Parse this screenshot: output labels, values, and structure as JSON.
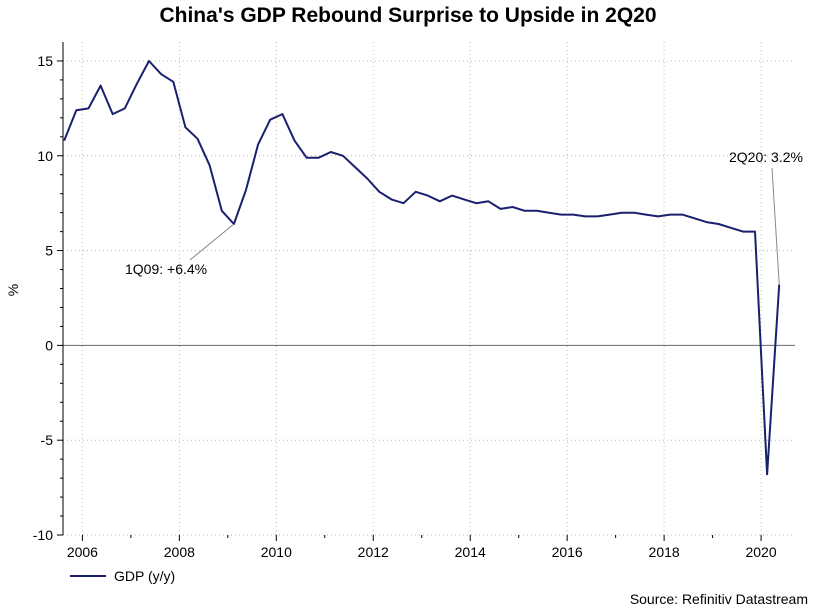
{
  "chart_data": {
    "type": "line",
    "title": "China's GDP Rebound Surprise to Upside in 2Q20",
    "xlabel": "",
    "ylabel": "%",
    "xlim": [
      2005.6,
      2020.7
    ],
    "ylim": [
      -10,
      16
    ],
    "x_ticks": [
      2006,
      2008,
      2010,
      2012,
      2014,
      2016,
      2018,
      2020
    ],
    "y_ticks": [
      -10,
      -5,
      0,
      5,
      10,
      15
    ],
    "grid": "dotted",
    "series": [
      {
        "name": "GDP (y/y)",
        "color": "#1a1f6e",
        "x": [
          2005.625,
          2005.875,
          2006.125,
          2006.375,
          2006.625,
          2006.875,
          2007.125,
          2007.375,
          2007.625,
          2007.875,
          2008.125,
          2008.375,
          2008.625,
          2008.875,
          2009.125,
          2009.375,
          2009.625,
          2009.875,
          2010.125,
          2010.375,
          2010.625,
          2010.875,
          2011.125,
          2011.375,
          2011.625,
          2011.875,
          2012.125,
          2012.375,
          2012.625,
          2012.875,
          2013.125,
          2013.375,
          2013.625,
          2013.875,
          2014.125,
          2014.375,
          2014.625,
          2014.875,
          2015.125,
          2015.375,
          2015.625,
          2015.875,
          2016.125,
          2016.375,
          2016.625,
          2016.875,
          2017.125,
          2017.375,
          2017.625,
          2017.875,
          2018.125,
          2018.375,
          2018.625,
          2018.875,
          2019.125,
          2019.375,
          2019.625,
          2019.875,
          2020.125,
          2020.375
        ],
        "values": [
          10.8,
          12.4,
          12.5,
          13.7,
          12.2,
          12.5,
          13.8,
          15.0,
          14.3,
          13.9,
          11.5,
          10.9,
          9.5,
          7.1,
          6.4,
          8.2,
          10.6,
          11.9,
          12.2,
          10.8,
          9.9,
          9.9,
          10.2,
          10.0,
          9.4,
          8.8,
          8.1,
          7.7,
          7.5,
          8.1,
          7.9,
          7.6,
          7.9,
          7.7,
          7.5,
          7.6,
          7.2,
          7.3,
          7.1,
          7.1,
          7.0,
          6.9,
          6.9,
          6.8,
          6.8,
          6.9,
          7.0,
          7.0,
          6.9,
          6.8,
          6.9,
          6.9,
          6.7,
          6.5,
          6.4,
          6.2,
          6.0,
          6.0,
          -6.8,
          3.2
        ]
      }
    ],
    "annotations": [
      {
        "text": "1Q09: +6.4%",
        "x": 2009.125,
        "y": 6.4
      },
      {
        "text": "2Q20: 3.2%",
        "x": 2020.375,
        "y": 3.2
      }
    ],
    "legend": "bottom-left",
    "source": "Source: Refinitiv Datastream"
  }
}
